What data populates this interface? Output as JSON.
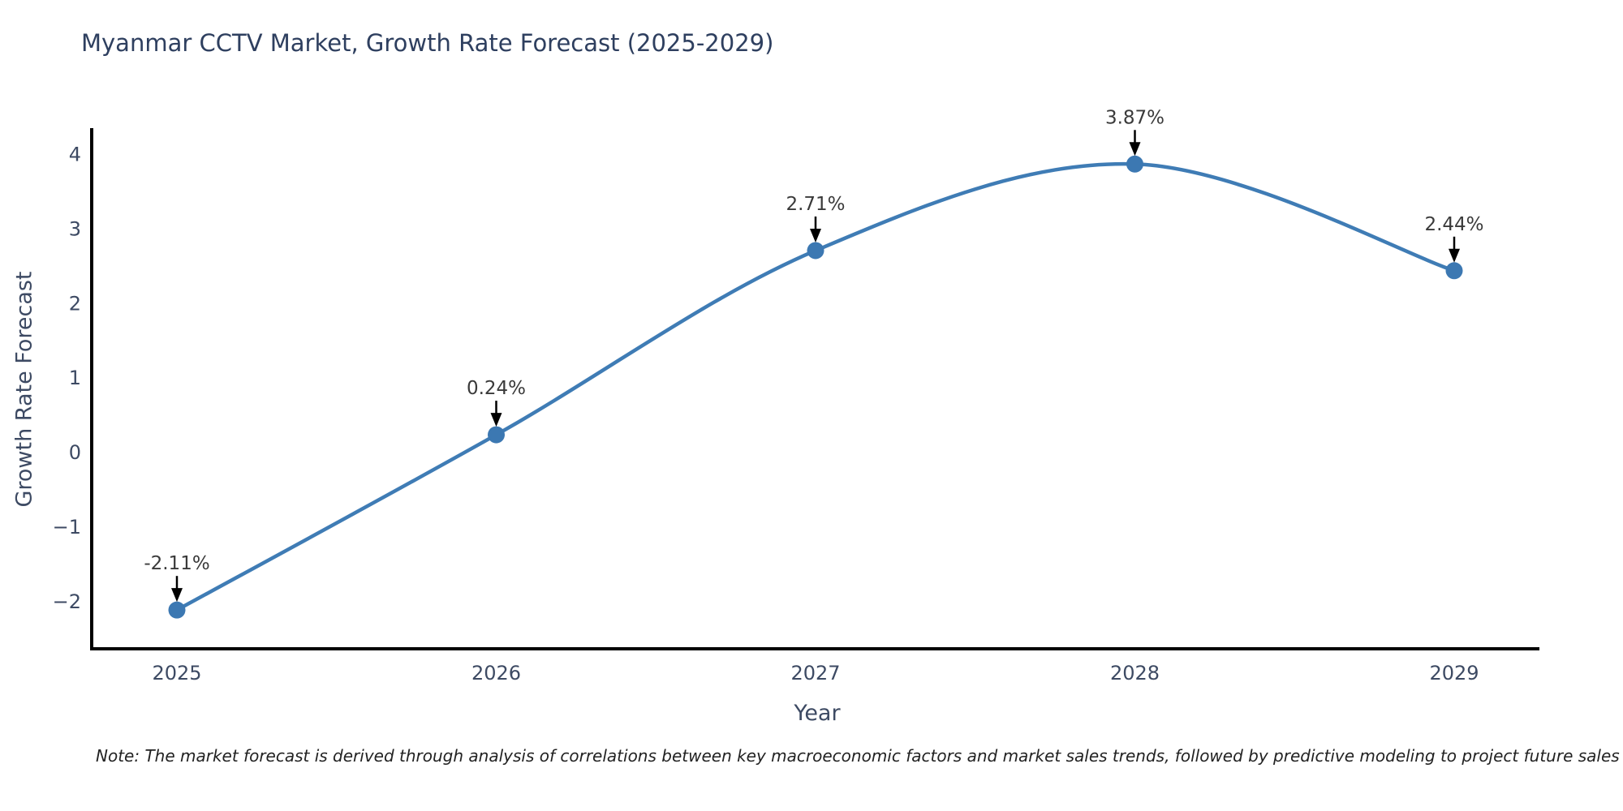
{
  "chart_data": {
    "type": "line",
    "title": "Myanmar CCTV Market, Growth Rate Forecast (2025-2029)",
    "xlabel": "Year",
    "ylabel": "Growth Rate Forecast",
    "categories": [
      "2025",
      "2026",
      "2027",
      "2028",
      "2029"
    ],
    "series": [
      {
        "name": "Growth Rate Forecast",
        "values": [
          -2.11,
          0.24,
          2.71,
          3.87,
          2.44
        ]
      }
    ],
    "point_labels": [
      "-2.11%",
      "0.24%",
      "2.71%",
      "3.87%",
      "2.44%"
    ],
    "yticks": [
      -2,
      -1,
      0,
      1,
      2,
      3,
      4
    ],
    "ylim": [
      -2.63,
      4.33
    ],
    "line_shape": "spline",
    "grid": false,
    "legend_position": "none",
    "line_color": "#3f7cb5",
    "marker_color": "#3c78b2"
  },
  "note": {
    "text": "Note: The market forecast is derived through analysis of correlations between key macroeconomic factors and market sales trends, followed by predictive modeling to project future sales"
  },
  "colors": {
    "background": "#ffffff",
    "title_text": "#2e3f5f",
    "axis_line": "#000000",
    "tick_label": "#3d4a63",
    "annotation_text": "#3a3a3a",
    "annotation_arrow": "#000000"
  }
}
